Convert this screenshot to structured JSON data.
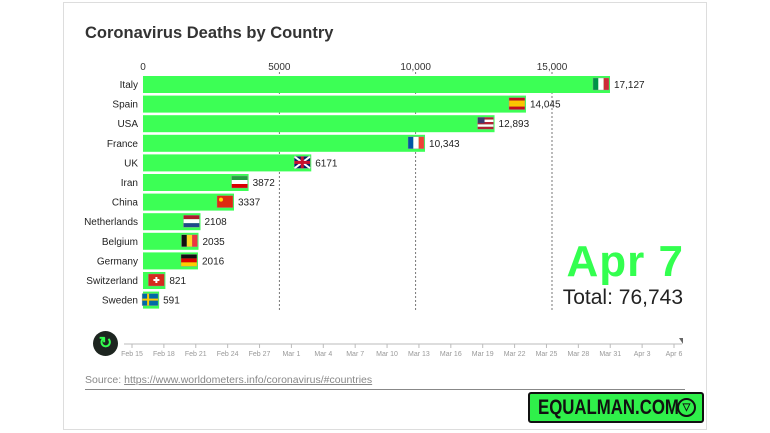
{
  "title": "Coronavirus Deaths by Country",
  "date_label": "Apr 7",
  "total_label": "Total: 76,743",
  "source_prefix": "Source: ",
  "source_link": "https://www.worldometers.info/coronavirus/#countries",
  "logo": "EQUALMAN.COM",
  "replay_icon": "replay-icon",
  "timeline": {
    "ticks": [
      "Feb 15",
      "Feb 18",
      "Feb 21",
      "Feb 24",
      "Feb 27",
      "Mar 1",
      "Mar 4",
      "Mar 7",
      "Mar 10",
      "Mar 13",
      "Mar 16",
      "Mar 19",
      "Mar 22",
      "Mar 25",
      "Mar 28",
      "Mar 31",
      "Apr 3",
      "Apr 6"
    ],
    "progress": 1.0
  },
  "colors": {
    "bar": "#3cff55",
    "date": "#33ff4f"
  },
  "chart_data": {
    "type": "bar",
    "orientation": "horizontal",
    "title": "Coronavirus Deaths by Country",
    "categories": [
      "Italy",
      "Spain",
      "USA",
      "France",
      "UK",
      "Iran",
      "China",
      "Netherlands",
      "Belgium",
      "Germany",
      "Switzerland",
      "Sweden"
    ],
    "values": [
      17127,
      14045,
      12893,
      10343,
      6171,
      3872,
      3337,
      2108,
      2035,
      2016,
      821,
      591
    ],
    "value_labels": [
      "17,127",
      "14,045",
      "12,893",
      "10,343",
      "6171",
      "3872",
      "3337",
      "2108",
      "2035",
      "2016",
      "821",
      "591"
    ],
    "flags": [
      "it",
      "es",
      "us",
      "fr",
      "uk",
      "ir",
      "cn",
      "nl",
      "be",
      "de",
      "ch",
      "se"
    ],
    "xticks": [
      0,
      5000,
      10000,
      15000
    ],
    "xtick_labels": [
      "0",
      "5000",
      "10,000",
      "15,000"
    ],
    "xlim": [
      0,
      17500
    ],
    "grid": true
  }
}
